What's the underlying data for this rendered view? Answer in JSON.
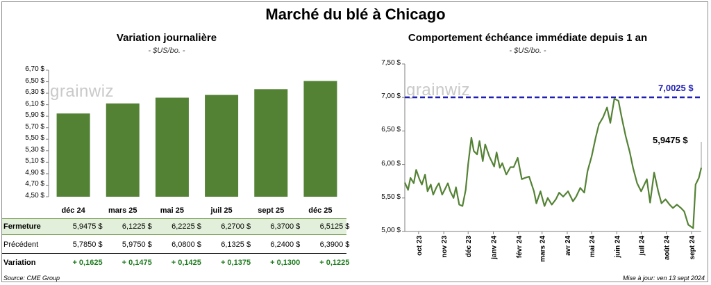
{
  "page": {
    "title": "Marché du blé à Chicago",
    "source": "Source: CME Group",
    "updated": "Mise à jour: ven 13 sept 2024",
    "watermark": "grainwiz"
  },
  "left_chart": {
    "title": "Variation  journalière",
    "subtitle": "- $US/bo. -",
    "y_ticks": [
      "6,70 $",
      "6,50 $",
      "6,30 $",
      "6,10 $",
      "5,90 $",
      "5,70 $",
      "5,50 $",
      "5,30 $",
      "5,10 $",
      "4,90 $",
      "4,70 $",
      "4,50 $"
    ]
  },
  "right_chart": {
    "title": "Comportement  échéance immédiate depuis 1 an",
    "subtitle": "- $US/bo. -",
    "y_ticks": [
      "7,50 $",
      "7,00 $",
      "6,50 $",
      "6,00 $",
      "5,50 $",
      "5,00 $"
    ],
    "x_ticks": [
      "oct 23",
      "nov 23",
      "déc 23",
      "janv 24",
      "févr 24",
      "mars 24",
      "avr 24",
      "mai 24",
      "juin 24",
      "juil 24",
      "août 24",
      "sept 24"
    ],
    "ref_label": "7,0025 $",
    "last_label": "5,9475 $"
  },
  "table": {
    "rows": [
      {
        "label": "Fermeture",
        "values": [
          "5,9475 $",
          "6,1225 $",
          "6,2225 $",
          "6,2700 $",
          "6,3700 $",
          "6,5125 $"
        ]
      },
      {
        "label": "Précédent",
        "values": [
          "5,7850 $",
          "5,9750 $",
          "6,0800 $",
          "6,1325 $",
          "6,2400 $",
          "6,3900 $"
        ]
      },
      {
        "label": "Variation",
        "values": [
          "+ 0,1625",
          "+ 0,1475",
          "+ 0,1425",
          "+ 0,1375",
          "+ 0,1300",
          "+ 0,1225"
        ]
      }
    ]
  },
  "colors": {
    "bar": "#548235",
    "line": "#548235",
    "ref_line": "#1f1fb4",
    "highlight_row": "#e2efda",
    "variation_text": "#1e7b1e"
  },
  "chart_data": [
    {
      "type": "bar",
      "title": "Variation  journalière",
      "ylabel": "- $US/bo. -",
      "categories": [
        "déc 24",
        "mars 25",
        "mai 25",
        "juil 25",
        "sept 25",
        "déc 25"
      ],
      "values": [
        5.9475,
        6.1225,
        6.2225,
        6.27,
        6.37,
        6.5125
      ],
      "ylim": [
        4.5,
        6.7
      ],
      "grid": false
    },
    {
      "type": "line",
      "title": "Comportement  échéance immédiate depuis 1 an",
      "ylabel": "- $US/bo. -",
      "ylim": [
        5.0,
        7.5
      ],
      "x_range": [
        "2023-09-14",
        "2024-09-13"
      ],
      "reference_line": {
        "value": 7.0025,
        "label": "7,0025 $"
      },
      "last_value": 5.9475,
      "grid": false,
      "series": [
        {
          "x": [
            "2023-09-14",
            "2023-09-18",
            "2023-09-21",
            "2023-09-25",
            "2023-09-28",
            "2023-10-02",
            "2023-10-05",
            "2023-10-09",
            "2023-10-12",
            "2023-10-16",
            "2023-10-19",
            "2023-10-23",
            "2023-10-26",
            "2023-10-30",
            "2023-11-02",
            "2023-11-06",
            "2023-11-09",
            "2023-11-13",
            "2023-11-16",
            "2023-11-20",
            "2023-11-24",
            "2023-11-28",
            "2023-12-01",
            "2023-12-05",
            "2023-12-08",
            "2023-12-12",
            "2023-12-15",
            "2023-12-19",
            "2023-12-22",
            "2023-12-27",
            "2024-01-02",
            "2024-01-05",
            "2024-01-09",
            "2024-01-12",
            "2024-01-17",
            "2024-01-22",
            "2024-01-26",
            "2024-01-31",
            "2024-02-05",
            "2024-02-09",
            "2024-02-14",
            "2024-02-20",
            "2024-02-23",
            "2024-02-28",
            "2024-03-04",
            "2024-03-08",
            "2024-03-13",
            "2024-03-18",
            "2024-03-22",
            "2024-03-27",
            "2024-04-02",
            "2024-04-08",
            "2024-04-12",
            "2024-04-17",
            "2024-04-22",
            "2024-04-26",
            "2024-05-01",
            "2024-05-06",
            "2024-05-10",
            "2024-05-15",
            "2024-05-20",
            "2024-05-24",
            "2024-05-29",
            "2024-06-03",
            "2024-06-07",
            "2024-06-12",
            "2024-06-17",
            "2024-06-21",
            "2024-06-26",
            "2024-07-01",
            "2024-07-08",
            "2024-07-12",
            "2024-07-17",
            "2024-07-22",
            "2024-07-26",
            "2024-07-31",
            "2024-08-05",
            "2024-08-09",
            "2024-08-14",
            "2024-08-19",
            "2024-08-23",
            "2024-08-28",
            "2024-09-03",
            "2024-09-06",
            "2024-09-10",
            "2024-09-13"
          ],
          "y": [
            5.73,
            5.62,
            5.8,
            5.72,
            5.92,
            5.78,
            5.7,
            5.85,
            5.6,
            5.7,
            5.55,
            5.66,
            5.72,
            5.55,
            5.62,
            5.72,
            5.6,
            5.5,
            5.66,
            5.4,
            5.38,
            5.62,
            6.0,
            6.4,
            6.2,
            6.15,
            6.35,
            6.05,
            6.3,
            6.12,
            5.97,
            6.18,
            5.95,
            6.02,
            5.85,
            5.96,
            5.96,
            6.1,
            5.78,
            5.8,
            5.82,
            5.6,
            5.42,
            5.6,
            5.38,
            5.5,
            5.4,
            5.48,
            5.58,
            5.52,
            5.6,
            5.45,
            5.52,
            5.65,
            5.58,
            5.9,
            6.12,
            6.4,
            6.6,
            6.7,
            6.85,
            6.62,
            6.98,
            6.95,
            6.7,
            6.42,
            6.18,
            5.95,
            5.72,
            5.6,
            5.78,
            5.43,
            5.88,
            5.6,
            5.42,
            5.48,
            5.4,
            5.35,
            5.4,
            5.35,
            5.3,
            5.1,
            5.05,
            5.7,
            5.8,
            5.95
          ]
        }
      ]
    }
  ]
}
